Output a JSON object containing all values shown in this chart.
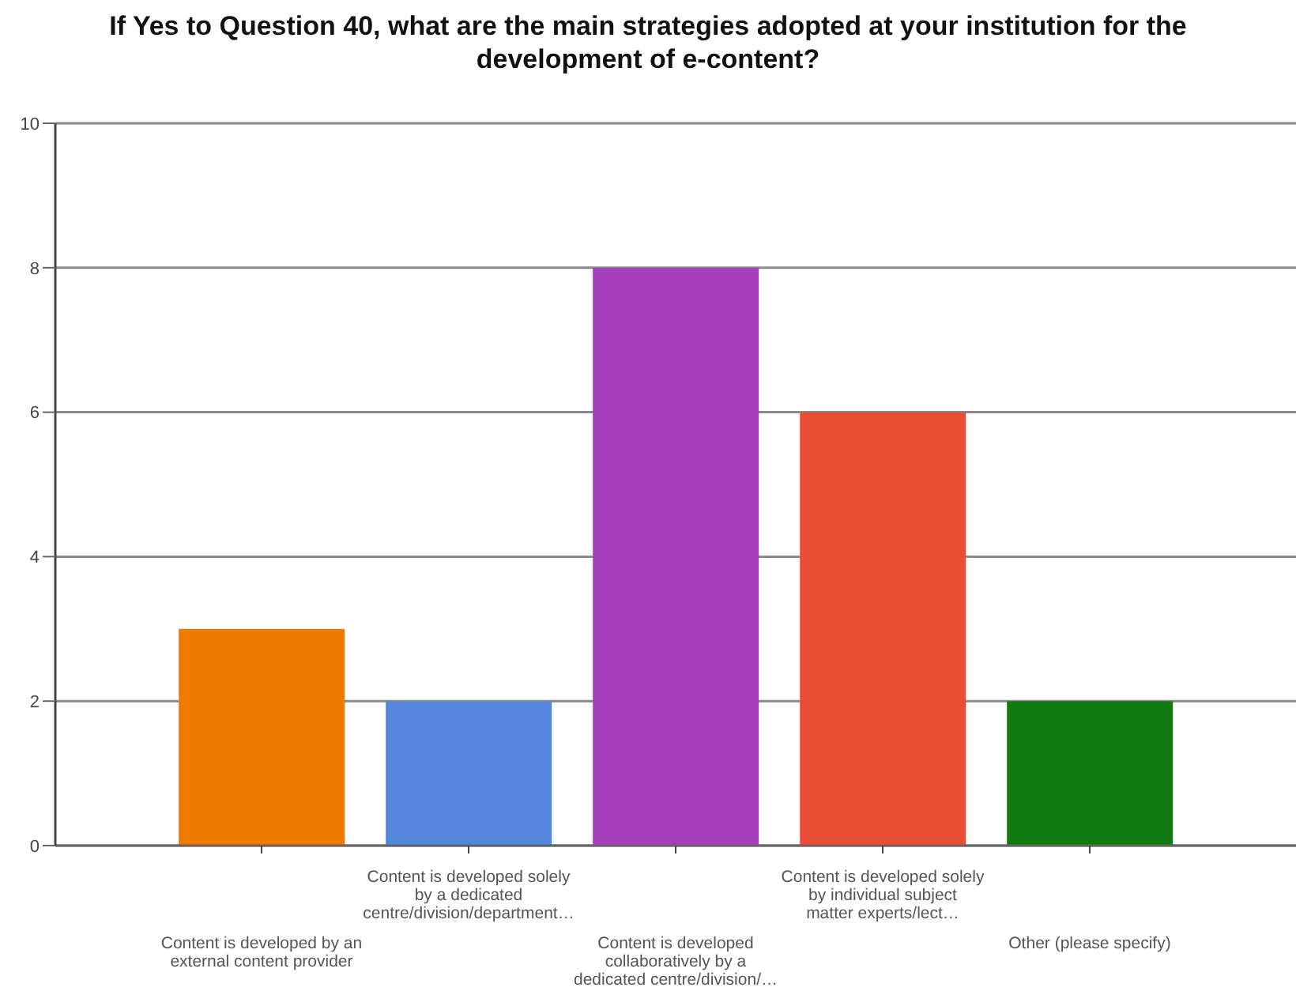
{
  "chart_data": {
    "type": "bar",
    "title": "If Yes to Question 40, what are the main strategies adopted at your institution for the development of e-content?",
    "categories": [
      "Content is developed by an external content provider",
      "Content is developed solely by a dedicated centre/division/department…",
      "Content is developed collaboratively by a dedicated centre/division/…",
      "Content is developed solely by individual subject matter experts/lect…",
      "Other (please specify)"
    ],
    "values": [
      3,
      2,
      8,
      6,
      2
    ],
    "colors": [
      "#ee7a00",
      "#5486dc",
      "#a53fbe",
      "#ea4f36",
      "#137a13"
    ],
    "ylim": [
      0,
      10
    ],
    "yticks": [
      0,
      2,
      4,
      6,
      8,
      10
    ],
    "grid": "y"
  }
}
